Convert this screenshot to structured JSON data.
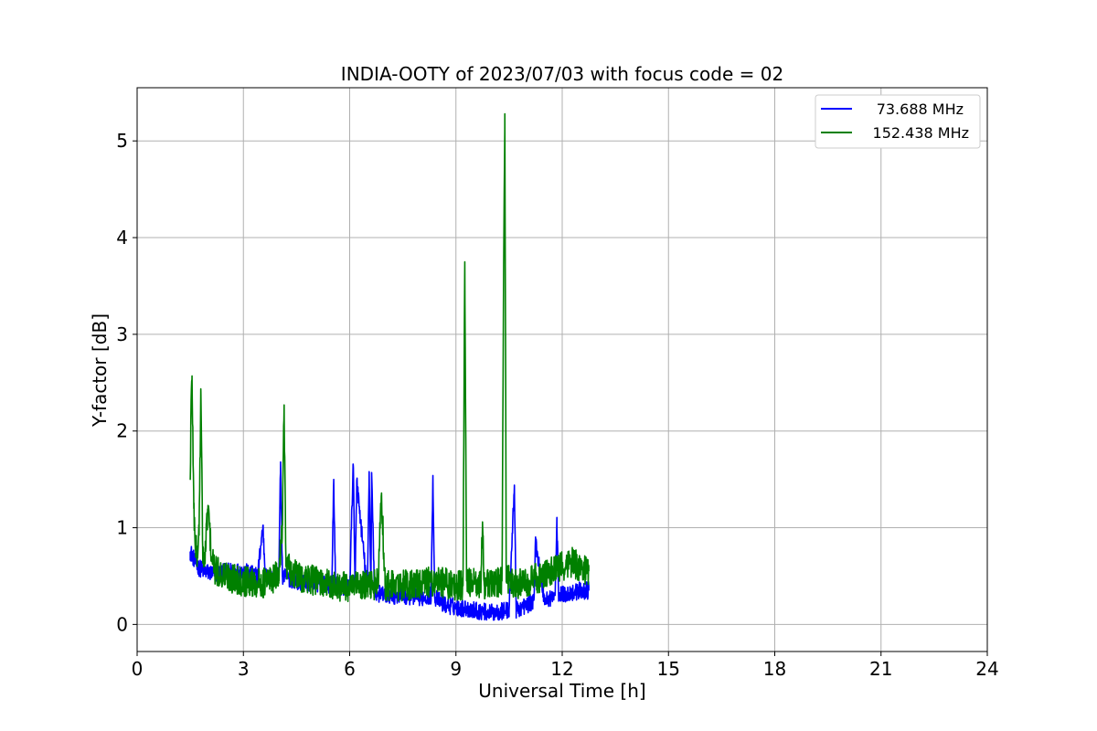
{
  "chart_data": {
    "type": "line",
    "title": "INDIA-OOTY of 2023/07/03 with focus code = 02",
    "xlabel": "Universal Time [h]",
    "ylabel": "Y-factor [dB]",
    "xlim": [
      0,
      24
    ],
    "ylim": [
      -0.28,
      5.55
    ],
    "xticks": [
      0,
      3,
      6,
      9,
      12,
      15,
      18,
      21,
      24
    ],
    "yticks": [
      0,
      1,
      2,
      3,
      4,
      5
    ],
    "grid": true,
    "legend_position": "top-right",
    "colors": {
      "s1": "#0000ff",
      "s2": "#008000"
    },
    "series": [
      {
        "name": "73.688 MHz",
        "color": "#0000ff",
        "x": [
          1.5,
          1.55,
          1.6,
          1.7,
          1.9,
          2.2,
          2.6,
          3.0,
          3.4,
          3.55,
          3.62,
          3.7,
          4.0,
          4.05,
          4.1,
          4.5,
          5.0,
          5.5,
          5.55,
          5.6,
          6.0,
          6.1,
          6.15,
          6.2,
          6.5,
          6.55,
          6.6,
          6.62,
          6.7,
          7.0,
          7.5,
          8.0,
          8.3,
          8.35,
          8.4,
          8.7,
          9.0,
          9.5,
          10.0,
          10.5,
          10.65,
          10.7,
          11.0,
          11.2,
          11.25,
          11.5,
          11.8,
          11.85,
          11.9,
          12.2,
          12.5,
          12.75
        ],
        "y": [
          0.75,
          0.72,
          0.68,
          0.6,
          0.55,
          0.52,
          0.55,
          0.55,
          0.5,
          1.02,
          0.5,
          0.48,
          0.5,
          1.68,
          0.5,
          0.45,
          0.42,
          0.4,
          1.5,
          0.4,
          0.38,
          1.65,
          0.4,
          1.48,
          0.35,
          1.58,
          0.35,
          1.57,
          0.33,
          0.3,
          0.3,
          0.28,
          0.3,
          1.54,
          0.28,
          0.2,
          0.18,
          0.15,
          0.12,
          0.15,
          1.44,
          0.15,
          0.2,
          0.25,
          0.86,
          0.25,
          0.3,
          1.02,
          0.3,
          0.32,
          0.35,
          0.35
        ]
      },
      {
        "name": "152.438 MHz",
        "color": "#008000",
        "x": [
          1.5,
          1.52,
          1.55,
          1.6,
          1.65,
          1.7,
          1.75,
          1.8,
          1.85,
          1.9,
          2.0,
          2.1,
          2.2,
          2.5,
          3.0,
          3.5,
          4.0,
          4.1,
          4.15,
          4.2,
          4.5,
          5.0,
          5.5,
          6.0,
          6.5,
          6.8,
          6.9,
          7.0,
          7.5,
          8.0,
          8.5,
          9.0,
          9.2,
          9.25,
          9.3,
          9.5,
          9.7,
          9.75,
          9.8,
          10.0,
          10.3,
          10.35,
          10.38,
          10.42,
          10.5,
          10.8,
          11.0,
          11.5,
          12.0,
          12.3,
          12.5,
          12.75
        ],
        "y": [
          1.5,
          2.2,
          2.57,
          1.2,
          0.8,
          0.7,
          1.0,
          2.4,
          0.8,
          0.6,
          1.23,
          0.7,
          0.55,
          0.5,
          0.45,
          0.42,
          0.5,
          1.07,
          2.27,
          0.6,
          0.5,
          0.45,
          0.4,
          0.38,
          0.4,
          0.42,
          1.35,
          0.4,
          0.4,
          0.42,
          0.45,
          0.4,
          0.4,
          3.75,
          0.45,
          0.42,
          0.4,
          1.06,
          0.4,
          0.42,
          0.45,
          3.83,
          5.28,
          0.5,
          0.45,
          0.42,
          0.45,
          0.5,
          0.6,
          0.65,
          0.6,
          0.55
        ]
      }
    ]
  }
}
